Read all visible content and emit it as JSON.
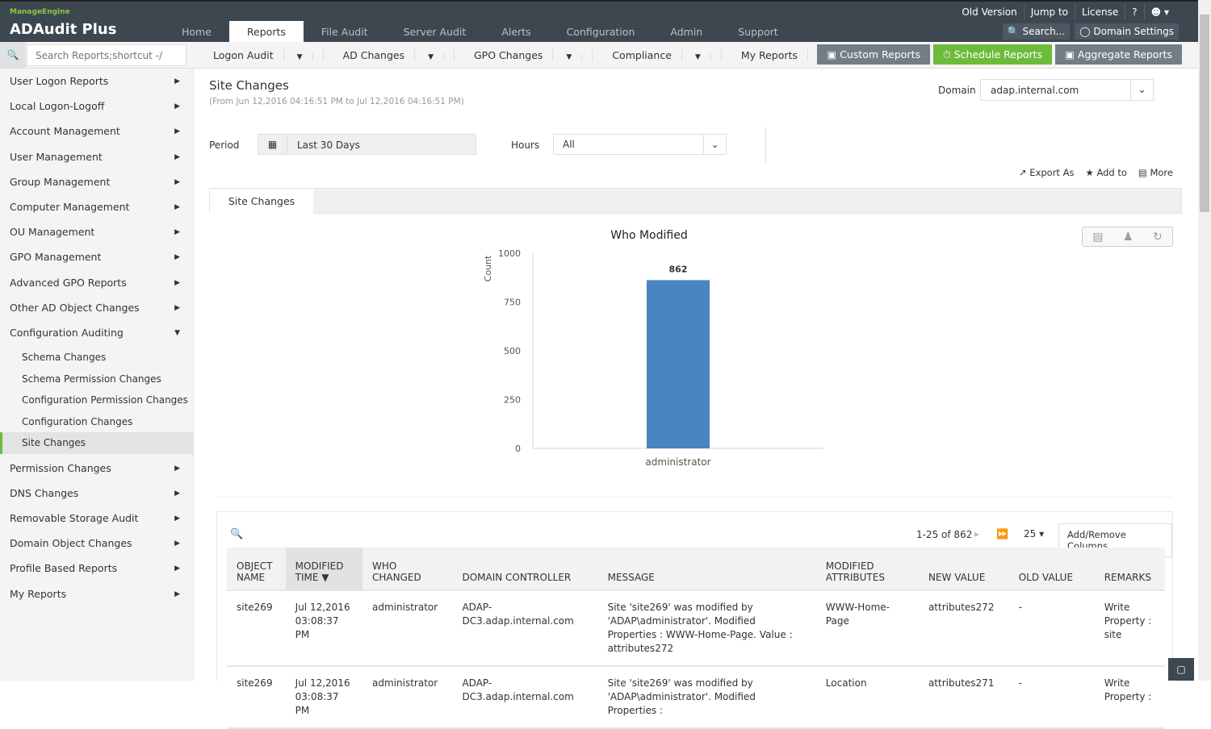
{
  "brand": {
    "vendor": "ManageEngine",
    "product": "ADAudit Plus"
  },
  "nav": {
    "tabs": [
      "Home",
      "Reports",
      "File Audit",
      "Server Audit",
      "Alerts",
      "Configuration",
      "Admin",
      "Support"
    ],
    "active": "Reports"
  },
  "toplinks": [
    "Old Version",
    "Jump to",
    "License",
    "?"
  ],
  "topbuttons": {
    "search": "Search...",
    "domain_settings": "Domain Settings"
  },
  "search": {
    "placeholder": "Search Reports;shortcut -/"
  },
  "menus": [
    "Logon Audit",
    "AD Changes",
    "GPO Changes",
    "Compliance",
    "My Reports"
  ],
  "actions": {
    "custom": "Custom Reports",
    "schedule": "Schedule Reports",
    "aggregate": "Aggregate Reports"
  },
  "colors": {
    "accent": "#6dbb3c",
    "header": "#3d4750",
    "bar": "#4a84c1"
  },
  "sidebar": {
    "items_top": [
      "User Logon Reports",
      "Local Logon-Logoff",
      "Account Management",
      "User Management",
      "Group Management",
      "Computer Management",
      "OU Management",
      "GPO Management",
      "Advanced GPO Reports",
      "Other AD Object Changes"
    ],
    "expanded": "Configuration Auditing",
    "sub": [
      "Schema Changes",
      "Schema Permission Changes",
      "Configuration Permission Changes",
      "Configuration Changes",
      "Site Changes"
    ],
    "selected": "Site Changes",
    "items_bottom": [
      "Permission Changes",
      "DNS Changes",
      "Removable Storage Audit",
      "Domain Object Changes",
      "Profile Based Reports",
      "My Reports"
    ]
  },
  "page": {
    "title": "Site Changes",
    "range": "(From Jun 12,2016 04:16:51 PM to Jul 12,2016 04:16:51 PM)",
    "domain_label": "Domain",
    "domain": "adap.internal.com",
    "period_label": "Period",
    "period": "Last 30 Days",
    "hours_label": "Hours",
    "hours": "All",
    "export": "Export As",
    "addto": "Add to",
    "more": "More",
    "tab": "Site Changes"
  },
  "chart_data": {
    "type": "bar",
    "title": "Who Modified",
    "ylabel": "Count",
    "categories": [
      "administrator"
    ],
    "values": [
      862
    ],
    "ylim": [
      0,
      1000
    ],
    "yticks": [
      0,
      250,
      500,
      750,
      1000
    ]
  },
  "table": {
    "pager": "1-25 of 862",
    "page_size": "25",
    "add_remove": "Add/Remove Columns",
    "headers": [
      [
        "OBJECT",
        "NAME"
      ],
      [
        "MODIFIED",
        "TIME"
      ],
      [
        "WHO",
        "CHANGED"
      ],
      [
        "",
        "DOMAIN CONTROLLER"
      ],
      [
        "",
        "MESSAGE"
      ],
      [
        "MODIFIED",
        "ATTRIBUTES"
      ],
      [
        "",
        "NEW VALUE"
      ],
      [
        "",
        "OLD VALUE"
      ],
      [
        "",
        "REMARKS"
      ]
    ],
    "rows": [
      [
        "site269",
        "Jul 12,2016 03:08:37 PM",
        "administrator",
        "ADAP-DC3.adap.internal.com",
        "Site 'site269' was modified by 'ADAP\\administrator'. Modified Properties : WWW-Home-Page. Value : attributes272",
        "WWW-Home-Page",
        "attributes272",
        "-",
        "Write Property : site"
      ],
      [
        "site269",
        "Jul 12,2016 03:08:37 PM",
        "administrator",
        "ADAP-DC3.adap.internal.com",
        "Site 'site269' was modified by 'ADAP\\administrator'. Modified Properties :",
        "Location",
        "attributes271",
        "-",
        "Write Property :"
      ]
    ]
  }
}
